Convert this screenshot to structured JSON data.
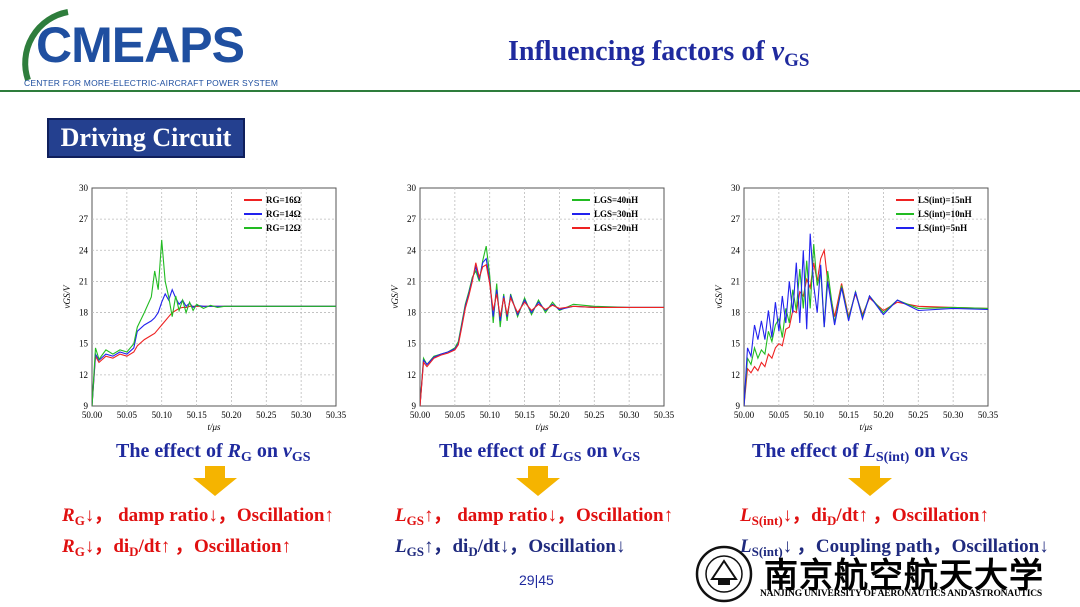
{
  "header": {
    "logo_text": "CMEAPS",
    "logo_subtitle": "CENTER FOR MORE-ELECTRIC-AIRCRAFT POWER SYSTEM",
    "title_main": "Influencing factors of ",
    "title_var": "v",
    "title_sub": "GS",
    "colors": {
      "logo_blue": "#1f4fa0",
      "logo_green": "#2e7d3c",
      "title": "#1f2a9e"
    }
  },
  "section": {
    "label": "Driving Circuit"
  },
  "chart_data": [
    {
      "type": "line",
      "x": [
        50.0,
        50.005,
        50.01,
        50.02,
        50.03,
        50.04,
        50.05,
        50.06,
        50.065,
        50.075,
        50.085,
        50.09,
        50.095,
        50.1,
        50.105,
        50.11,
        50.115,
        50.12,
        50.125,
        50.13,
        50.135,
        50.14,
        50.145,
        50.15,
        50.16,
        50.17,
        50.18,
        50.19,
        50.2,
        50.22,
        50.25,
        50.3,
        50.35
      ],
      "series": [
        {
          "name": "RG=16Ω",
          "color": "#ee2222",
          "values": [
            9,
            13.8,
            13.2,
            13.8,
            13.6,
            14.0,
            13.8,
            14.2,
            14.8,
            15.4,
            15.8,
            16.0,
            16.4,
            16.8,
            17.2,
            17.6,
            18.0,
            18.2,
            18.4,
            18.5,
            18.5,
            18.6,
            18.6,
            18.6,
            18.6,
            18.6,
            18.6,
            18.6,
            18.6,
            18.6,
            18.6,
            18.6,
            18.6
          ]
        },
        {
          "name": "RG=14Ω",
          "color": "#2222ee",
          "values": [
            9,
            14.0,
            13.4,
            14.0,
            13.8,
            14.2,
            14.0,
            14.6,
            16.2,
            16.8,
            17.2,
            17.5,
            18.0,
            19.0,
            19.8,
            19.2,
            20.2,
            19.4,
            18.8,
            19.2,
            18.6,
            18.9,
            18.5,
            18.7,
            18.6,
            18.6,
            18.6,
            18.6,
            18.6,
            18.6,
            18.6,
            18.6,
            18.6
          ]
        },
        {
          "name": "RG=12Ω",
          "color": "#22bb22",
          "values": [
            9,
            14.6,
            13.5,
            14.4,
            14.0,
            14.4,
            14.2,
            15.0,
            16.6,
            18.0,
            19.5,
            22.0,
            20.2,
            25.0,
            21.0,
            19.5,
            17.6,
            19.6,
            18.2,
            19.2,
            18.0,
            19.0,
            18.2,
            18.8,
            18.4,
            18.7,
            18.5,
            18.6,
            18.6,
            18.6,
            18.6,
            18.6,
            18.6
          ]
        }
      ],
      "xlabel": "t/μs",
      "ylabel": "vGS/V",
      "xlim": [
        50.0,
        50.35
      ],
      "ylim": [
        9,
        30
      ],
      "xticks": [
        "50.00",
        "50.05",
        "50.10",
        "50.15",
        "50.20",
        "50.25",
        "50.30",
        "50.35"
      ],
      "yticks": [
        "9",
        "12",
        "15",
        "18",
        "21",
        "24",
        "27",
        "30"
      ],
      "grid": true,
      "legend": "top-right"
    },
    {
      "type": "line",
      "x": [
        50.0,
        50.005,
        50.01,
        50.02,
        50.03,
        50.04,
        50.05,
        50.055,
        50.06,
        50.065,
        50.07,
        50.075,
        50.08,
        50.085,
        50.09,
        50.095,
        50.1,
        50.105,
        50.11,
        50.115,
        50.12,
        50.125,
        50.13,
        50.14,
        50.15,
        50.16,
        50.17,
        50.18,
        50.19,
        50.2,
        50.22,
        50.25,
        50.3,
        50.35
      ],
      "series": [
        {
          "name": "LGS=40nH",
          "color": "#22bb22",
          "values": [
            9,
            13.6,
            13.0,
            13.8,
            14.0,
            14.2,
            14.6,
            15.2,
            17.0,
            18.8,
            20.0,
            21.4,
            22.0,
            21.0,
            23.0,
            24.4,
            21.6,
            17.0,
            20.8,
            16.6,
            19.8,
            17.2,
            19.8,
            17.6,
            19.4,
            17.8,
            19.2,
            18.0,
            19.0,
            18.2,
            18.8,
            18.6,
            18.5,
            18.5
          ]
        },
        {
          "name": "LGS=30nH",
          "color": "#2222ee",
          "values": [
            9,
            13.4,
            13.0,
            13.7,
            14.0,
            14.2,
            14.5,
            15.0,
            16.8,
            18.6,
            19.8,
            21.2,
            22.4,
            21.2,
            22.8,
            23.2,
            21.0,
            17.6,
            20.2,
            17.2,
            19.6,
            17.6,
            19.6,
            17.8,
            19.2,
            18.0,
            19.0,
            18.2,
            18.8,
            18.3,
            18.6,
            18.5,
            18.5,
            18.5
          ]
        },
        {
          "name": "LGS=20nH",
          "color": "#ee2222",
          "values": [
            9,
            13.2,
            12.8,
            13.6,
            13.9,
            14.1,
            14.4,
            14.9,
            16.6,
            18.4,
            19.6,
            21.0,
            22.8,
            21.4,
            22.4,
            22.6,
            20.8,
            18.2,
            19.8,
            17.6,
            19.4,
            17.8,
            19.4,
            18.0,
            19.0,
            18.2,
            18.8,
            18.3,
            18.7,
            18.4,
            18.6,
            18.5,
            18.5,
            18.5
          ]
        }
      ],
      "xlabel": "t/μs",
      "ylabel": "vGS/V",
      "xlim": [
        50.0,
        50.35
      ],
      "ylim": [
        9,
        30
      ],
      "xticks": [
        "50.00",
        "50.05",
        "50.10",
        "50.15",
        "50.20",
        "50.25",
        "50.30",
        "50.35"
      ],
      "yticks": [
        "9",
        "12",
        "15",
        "18",
        "21",
        "24",
        "27",
        "30"
      ],
      "grid": true,
      "legend": "top-right"
    },
    {
      "type": "line",
      "x": [
        50.0,
        50.005,
        50.01,
        50.015,
        50.02,
        50.025,
        50.03,
        50.035,
        50.04,
        50.045,
        50.05,
        50.055,
        50.06,
        50.065,
        50.07,
        50.075,
        50.08,
        50.085,
        50.09,
        50.095,
        50.1,
        50.105,
        50.11,
        50.115,
        50.12,
        50.13,
        50.14,
        50.15,
        50.16,
        50.17,
        50.18,
        50.2,
        50.22,
        50.25,
        50.3,
        50.35
      ],
      "series": [
        {
          "name": "LS(int)=15nH",
          "color": "#ee2222",
          "values": [
            9,
            12.6,
            12.2,
            12.8,
            12.4,
            13.2,
            12.8,
            14.0,
            13.6,
            14.6,
            15.0,
            14.8,
            16.4,
            16.6,
            18.2,
            18.0,
            20.0,
            19.6,
            21.2,
            20.4,
            22.8,
            21.0,
            23.2,
            24.0,
            21.0,
            17.6,
            20.8,
            17.6,
            19.8,
            17.8,
            19.4,
            18.2,
            19.0,
            18.6,
            18.5,
            18.4
          ]
        },
        {
          "name": "LS(int)=10nH",
          "color": "#22bb22",
          "values": [
            9,
            13.6,
            13.0,
            14.6,
            13.6,
            14.4,
            14.0,
            16.2,
            15.2,
            16.8,
            17.4,
            15.6,
            18.4,
            17.0,
            20.2,
            18.2,
            22.2,
            18.4,
            23.0,
            18.4,
            24.6,
            20.6,
            22.0,
            16.6,
            22.0,
            17.0,
            20.6,
            17.4,
            20.0,
            17.6,
            19.6,
            18.0,
            19.2,
            18.4,
            18.5,
            18.4
          ]
        },
        {
          "name": "LS(int)=5nH",
          "color": "#2222ee",
          "values": [
            9,
            14.6,
            13.8,
            16.8,
            15.4,
            17.2,
            15.4,
            18.2,
            15.6,
            19.0,
            16.2,
            19.6,
            17.0,
            21.0,
            18.0,
            22.8,
            17.0,
            24.0,
            16.4,
            25.6,
            20.6,
            18.0,
            22.6,
            16.6,
            21.0,
            16.8,
            20.4,
            17.2,
            20.0,
            17.4,
            19.6,
            17.8,
            19.2,
            18.2,
            18.4,
            18.3
          ]
        }
      ],
      "xlabel": "t/μs",
      "ylabel": "vGS/V",
      "xlim": [
        50.0,
        50.35
      ],
      "ylim": [
        9,
        30
      ],
      "xticks": [
        "50.00",
        "50.05",
        "50.10",
        "50.15",
        "50.20",
        "50.25",
        "50.30",
        "50.35"
      ],
      "yticks": [
        "9",
        "12",
        "15",
        "18",
        "21",
        "24",
        "27",
        "30"
      ],
      "grid": true,
      "legend": "top-right"
    }
  ],
  "captions": [
    {
      "pre": "The effect of ",
      "sym": "R",
      "sym_sub": "G",
      "mid": " on ",
      "var": "v",
      "var_sub": "GS"
    },
    {
      "pre": "The effect of ",
      "sym": "L",
      "sym_sub": "GS",
      "mid": " on ",
      "var": "v",
      "var_sub": "GS"
    },
    {
      "pre": "The effect of ",
      "sym": "L",
      "sym_sub": "S(int)",
      "mid": " on ",
      "var": "v",
      "var_sub": "GS"
    }
  ],
  "conclusions": {
    "c1_l1": {
      "sym": "R",
      "sub": "G",
      "text": "↓， damp ratio↓，Oscillation↑"
    },
    "c1_l2": {
      "sym": "R",
      "sub": "G",
      "pre": "↓，di",
      "sub2": "D",
      "post": "/dt↑ ，Oscillation↑"
    },
    "c2_l1": {
      "sym": "L",
      "sub": "GS",
      "text": "↑， damp ratio↓，Oscillation↑"
    },
    "c2_l2": {
      "sym": "L",
      "sub": "GS",
      "pre": "↑，di",
      "sub2": "D",
      "post": "/dt↓，Oscillation↓"
    },
    "c3_l1": {
      "sym": "L",
      "sub": "S(int)",
      "pre": "↓，di",
      "sub2": "D",
      "post": "/dt↑ ，Oscillation↑"
    },
    "c3_l2": {
      "sym": "L",
      "sub": "S(int)",
      "text": "↓ ，Coupling path，Oscillation↓"
    }
  },
  "footer": {
    "page": "29|45",
    "university_cn": "南京航空航天大学",
    "university_en": "NANJING UNIVERSITY OF AERONAUTICS AND ASTRONAUTICS"
  },
  "arrow_color": "#f5b400"
}
